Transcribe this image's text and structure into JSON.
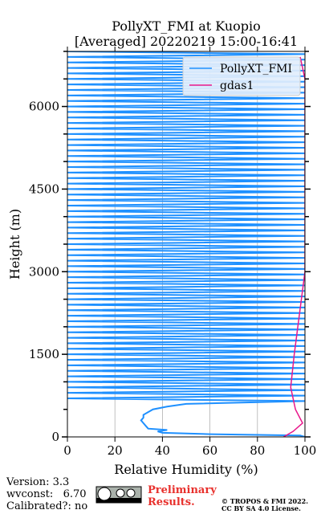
{
  "chart_data": {
    "type": "profile",
    "title": "PollyXT_FMI at Kuopio",
    "subtitle": "[Averaged] 20220219 15:00-16:41",
    "xlabel": "Relative Humidity (%)",
    "ylabel": "Height (m)",
    "xlim": [
      0,
      100
    ],
    "ylim": [
      0,
      7000
    ],
    "xticks": [
      0,
      20,
      40,
      60,
      80,
      100
    ],
    "yticks": [
      0,
      1500,
      3000,
      4500,
      6000
    ],
    "yticks_minor": [
      500,
      1000,
      2000,
      2500,
      3500,
      4000,
      5000,
      5500,
      6500,
      7000
    ],
    "grid": true,
    "legend": "upper right",
    "series": [
      {
        "name": "PollyXT_FMI",
        "color": "#1e90ff",
        "y": [
          0,
          25,
          50,
          75,
          100,
          125,
          150,
          200,
          250,
          300,
          350,
          400,
          450,
          500,
          550,
          600,
          650,
          700,
          750,
          800,
          850,
          900,
          950,
          1000,
          1050,
          1100,
          1150,
          1200,
          1250,
          1300,
          1350,
          1400,
          1450,
          1500,
          1550,
          1600,
          1650,
          1700,
          1750,
          1800,
          1850,
          1900,
          1950,
          2000,
          2050,
          2100,
          2150,
          2200,
          2250,
          2300,
          2350,
          2400,
          2450,
          2500,
          2550,
          2600,
          2650,
          2700,
          2750,
          2800,
          2850,
          2900,
          2950,
          3000,
          3050,
          3100,
          3150,
          3200,
          3250,
          3300,
          3350,
          3400,
          3450,
          3500,
          3550,
          3600,
          3650,
          3700,
          3750,
          3800,
          3850,
          3900,
          3950,
          4000,
          4050,
          4100,
          4150,
          4200,
          4250,
          4300,
          4350,
          4400,
          4450,
          4500,
          4550,
          4600,
          4650,
          4700,
          4750,
          4800,
          4850,
          4900,
          4950,
          5000,
          5050,
          5100,
          5150,
          5200,
          5250,
          5300,
          5350,
          5400,
          5450,
          5500,
          5550,
          5600,
          5650,
          5700,
          5750,
          5800,
          5850,
          5900,
          5950,
          6000,
          6050,
          6100,
          6150,
          6200,
          6250,
          6300,
          6350,
          6400,
          6450,
          6500,
          6550,
          6600,
          6650,
          6700,
          6750,
          6800,
          6850,
          6900,
          6950,
          7000
        ],
        "values": [
          100,
          98,
          60,
          40,
          38,
          42,
          34,
          33,
          32,
          31,
          32,
          32,
          34,
          36,
          42,
          50,
          100,
          0,
          100,
          0,
          100,
          0,
          100,
          0,
          100,
          0,
          100,
          0,
          100,
          0,
          100,
          0,
          100,
          0,
          100,
          0,
          100,
          0,
          100,
          0,
          100,
          0,
          100,
          0,
          100,
          0,
          100,
          0,
          100,
          0,
          100,
          0,
          100,
          0,
          100,
          0,
          100,
          0,
          100,
          0,
          100,
          0,
          100,
          0,
          100,
          0,
          100,
          0,
          100,
          0,
          100,
          0,
          100,
          0,
          100,
          0,
          100,
          0,
          100,
          0,
          100,
          0,
          100,
          0,
          100,
          0,
          100,
          0,
          100,
          0,
          100,
          0,
          100,
          0,
          100,
          0,
          100,
          0,
          100,
          0,
          100,
          0,
          100,
          0,
          100,
          0,
          100,
          0,
          100,
          0,
          100,
          0,
          100,
          0,
          100,
          0,
          100,
          0,
          100,
          0,
          100,
          0,
          100,
          0,
          100,
          0,
          100,
          0,
          100,
          0,
          100,
          0,
          100,
          0,
          100,
          0,
          100,
          0,
          100,
          0,
          100,
          0,
          100,
          0
        ]
      },
      {
        "name": "gdas1",
        "color": "#e8188c",
        "y": [
          0,
          100,
          250,
          500,
          900,
          1500,
          2000,
          2500,
          3000,
          6500,
          6900
        ],
        "values": [
          91,
          95,
          99,
          96,
          94,
          95.5,
          97,
          98.5,
          100,
          100,
          98
        ]
      }
    ]
  },
  "footer": {
    "version": "Version: 3.3",
    "wvconst": "wvconst:   6.70",
    "calibrated": "Calibrated?: no",
    "preliminary": "Preliminary Results.",
    "copyright": "© TROPOS & FMI 2022.",
    "license": "CC BY SA 4.0 License."
  }
}
